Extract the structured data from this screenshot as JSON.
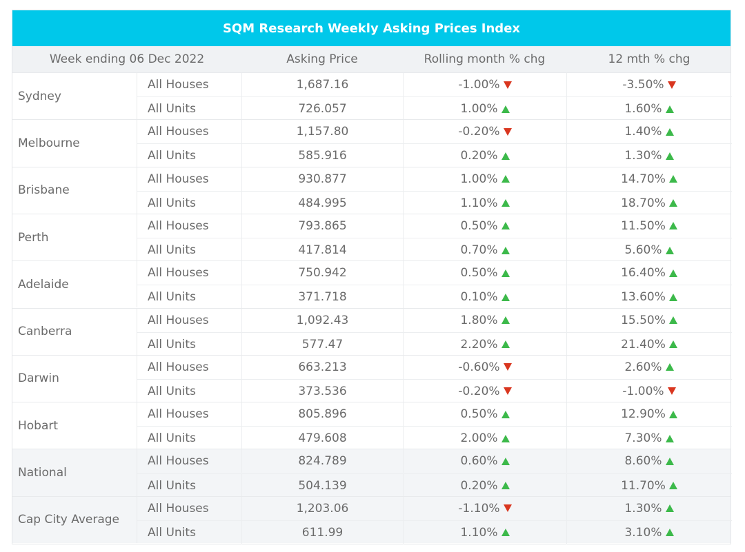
{
  "chart_data": {
    "type": "table",
    "title": "SQM Research Weekly Asking Prices Index",
    "columns": [
      "Week ending 06 Dec 2022",
      "Asking Price",
      "Rolling month % chg",
      "12 mth % chg"
    ],
    "colors": {
      "header": "#00c8ea",
      "up": "#3cb94a",
      "down": "#d9361f"
    },
    "rows": [
      {
        "city": "Sydney",
        "items": [
          {
            "type": "All Houses",
            "price": "1,687.16",
            "roll": "-1.00%",
            "roll_dir": "down",
            "yr": "-3.50%",
            "yr_dir": "down"
          },
          {
            "type": "All Units",
            "price": "726.057",
            "roll": "1.00%",
            "roll_dir": "up",
            "yr": "1.60%",
            "yr_dir": "up"
          }
        ]
      },
      {
        "city": "Melbourne",
        "items": [
          {
            "type": "All Houses",
            "price": "1,157.80",
            "roll": "-0.20%",
            "roll_dir": "down",
            "yr": "1.40%",
            "yr_dir": "up"
          },
          {
            "type": "All Units",
            "price": "585.916",
            "roll": "0.20%",
            "roll_dir": "up",
            "yr": "1.30%",
            "yr_dir": "up"
          }
        ]
      },
      {
        "city": "Brisbane",
        "items": [
          {
            "type": "All Houses",
            "price": "930.877",
            "roll": "1.00%",
            "roll_dir": "up",
            "yr": "14.70%",
            "yr_dir": "up"
          },
          {
            "type": "All Units",
            "price": "484.995",
            "roll": "1.10%",
            "roll_dir": "up",
            "yr": "18.70%",
            "yr_dir": "up"
          }
        ]
      },
      {
        "city": "Perth",
        "items": [
          {
            "type": "All Houses",
            "price": "793.865",
            "roll": "0.50%",
            "roll_dir": "up",
            "yr": "11.50%",
            "yr_dir": "up"
          },
          {
            "type": "All Units",
            "price": "417.814",
            "roll": "0.70%",
            "roll_dir": "up",
            "yr": "5.60%",
            "yr_dir": "up"
          }
        ]
      },
      {
        "city": "Adelaide",
        "items": [
          {
            "type": "All Houses",
            "price": "750.942",
            "roll": "0.50%",
            "roll_dir": "up",
            "yr": "16.40%",
            "yr_dir": "up"
          },
          {
            "type": "All Units",
            "price": "371.718",
            "roll": "0.10%",
            "roll_dir": "up",
            "yr": "13.60%",
            "yr_dir": "up"
          }
        ]
      },
      {
        "city": "Canberra",
        "items": [
          {
            "type": "All Houses",
            "price": "1,092.43",
            "roll": "1.80%",
            "roll_dir": "up",
            "yr": "15.50%",
            "yr_dir": "up"
          },
          {
            "type": "All Units",
            "price": "577.47",
            "roll": "2.20%",
            "roll_dir": "up",
            "yr": "21.40%",
            "yr_dir": "up"
          }
        ]
      },
      {
        "city": "Darwin",
        "items": [
          {
            "type": "All Houses",
            "price": "663.213",
            "roll": "-0.60%",
            "roll_dir": "down",
            "yr": "2.60%",
            "yr_dir": "up"
          },
          {
            "type": "All Units",
            "price": "373.536",
            "roll": "-0.20%",
            "roll_dir": "down",
            "yr": "-1.00%",
            "yr_dir": "down"
          }
        ]
      },
      {
        "city": "Hobart",
        "items": [
          {
            "type": "All Houses",
            "price": "805.896",
            "roll": "0.50%",
            "roll_dir": "up",
            "yr": "12.90%",
            "yr_dir": "up"
          },
          {
            "type": "All Units",
            "price": "479.608",
            "roll": "2.00%",
            "roll_dir": "up",
            "yr": "7.30%",
            "yr_dir": "up"
          }
        ]
      },
      {
        "city": "National",
        "items": [
          {
            "type": "All Houses",
            "price": "824.789",
            "roll": "0.60%",
            "roll_dir": "up",
            "yr": "8.60%",
            "yr_dir": "up"
          },
          {
            "type": "All Units",
            "price": "504.139",
            "roll": "0.20%",
            "roll_dir": "up",
            "yr": "11.70%",
            "yr_dir": "up"
          }
        ]
      },
      {
        "city": "Cap City Average",
        "items": [
          {
            "type": "All Houses",
            "price": "1,203.06",
            "roll": "-1.10%",
            "roll_dir": "down",
            "yr": "1.30%",
            "yr_dir": "up"
          },
          {
            "type": "All Units",
            "price": "611.99",
            "roll": "1.10%",
            "roll_dir": "up",
            "yr": "3.10%",
            "yr_dir": "up"
          }
        ]
      }
    ]
  }
}
